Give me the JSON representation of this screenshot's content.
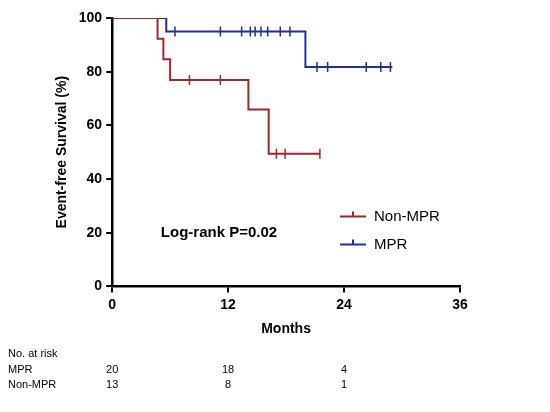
{
  "chart_data": {
    "type": "kaplan_meier",
    "x_label": "Months",
    "y_label": "Event-free Survival (%)",
    "xlim": [
      0,
      36
    ],
    "xticks": [
      0,
      12,
      24,
      36
    ],
    "ylim": [
      0,
      100
    ],
    "yticks": [
      0,
      20,
      40,
      60,
      80,
      100
    ],
    "grid": false,
    "legend": "lower right",
    "annotations": [
      "Log-rank P=0.02"
    ],
    "series": [
      {
        "name": "Non-MPR",
        "color": "#a3262a",
        "x": [
          0,
          4.7,
          5.3,
          6.0,
          14.1,
          16.2,
          21.5
        ],
        "values": [
          100,
          92.3,
          84.6,
          76.9,
          65.9,
          49.4,
          49.4
        ],
        "censored_x": [
          8.0,
          11.2,
          17.0,
          17.9,
          21.5
        ],
        "censored_values": [
          76.9,
          76.9,
          49.4,
          49.4,
          49.4
        ]
      },
      {
        "name": "MPR",
        "color": "#1f2f9e",
        "x": [
          0,
          5.6,
          20.0,
          29.0
        ],
        "values": [
          100,
          95,
          81.7,
          81.7
        ],
        "censored_x": [
          6.5,
          11.2,
          13.4,
          14.3,
          14.8,
          15.4,
          16.1,
          17.4,
          18.4,
          21.2,
          22.3,
          26.3,
          27.8,
          28.8
        ],
        "censored_values": [
          95,
          95,
          95,
          95,
          95,
          95,
          95,
          95,
          95,
          81.7,
          81.7,
          81.7,
          81.7,
          81.7
        ]
      }
    ],
    "at_risk": {
      "title": "No. at risk",
      "x": [
        0,
        12,
        24
      ],
      "rows": [
        {
          "name": "MPR",
          "values": [
            20,
            18,
            4
          ]
        },
        {
          "name": "Non-MPR",
          "values": [
            13,
            8,
            1
          ]
        }
      ]
    }
  }
}
